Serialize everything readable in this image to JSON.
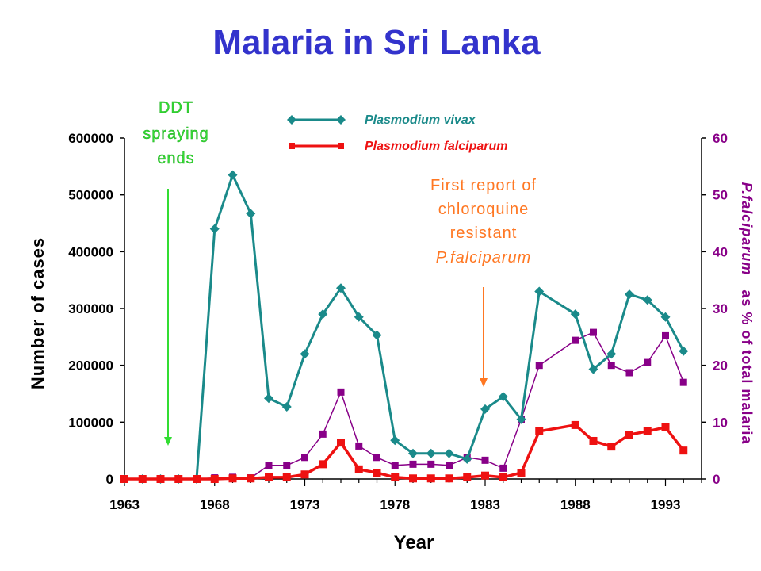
{
  "title": "Malaria in Sri Lanka",
  "colors": {
    "title": "#3333cc",
    "vivax": "#1a8a8a",
    "falciparum": "#ee1111",
    "percent": "#880088",
    "ddt_annotation": "#33dd33",
    "chloroquine_annotation": "#ff7722",
    "axis": "#000000"
  },
  "legend": {
    "vivax": "Plasmodium vivax",
    "falciparum": "Plasmodium falciparum"
  },
  "annotations": {
    "ddt": [
      "DDT",
      "spraying",
      "ends"
    ],
    "chloroquine": [
      "First report of",
      "chloroquine",
      "resistant",
      "P.falciparum"
    ]
  },
  "chart_data": {
    "type": "line",
    "title": "Malaria in Sri Lanka",
    "xlabel": "Year",
    "ylabel": "Number of cases",
    "y2label_italic": "P.falciparum",
    "y2label_rest": "as % of total malaria",
    "xlim": [
      1963,
      1995
    ],
    "ylim": [
      0,
      600000
    ],
    "y2lim": [
      0,
      60
    ],
    "x_ticks": [
      1963,
      1968,
      1973,
      1978,
      1983,
      1988,
      1993
    ],
    "y_ticks": [
      0,
      100000,
      200000,
      300000,
      400000,
      500000,
      600000
    ],
    "y2_ticks": [
      0,
      10,
      20,
      30,
      40,
      50,
      60
    ],
    "grid": false,
    "legend_position": "top-center",
    "annotation_arrows": [
      {
        "label": "DDT spraying ends",
        "x": 1965.4
      },
      {
        "label": "First report of chloroquine resistant P.falciparum",
        "x": 1983
      }
    ],
    "series": [
      {
        "name": "Plasmodium vivax",
        "axis": "left",
        "marker": "diamond",
        "x": [
          1963,
          1964,
          1965,
          1966,
          1967,
          1968,
          1969,
          1970,
          1971,
          1972,
          1973,
          1974,
          1975,
          1976,
          1977,
          1978,
          1979,
          1980,
          1981,
          1982,
          1983,
          1984,
          1985,
          1986,
          1988,
          1989,
          1990,
          1991,
          1992,
          1993,
          1994
        ],
        "values": [
          0,
          0,
          0,
          0,
          0,
          440000,
          535000,
          467000,
          142000,
          127000,
          220000,
          290000,
          336000,
          285000,
          253000,
          68000,
          45000,
          45000,
          45000,
          35000,
          123000,
          145000,
          105000,
          330000,
          290000,
          193000,
          220000,
          325000,
          315000,
          285000,
          225000
        ]
      },
      {
        "name": "Plasmodium falciparum",
        "axis": "left",
        "marker": "square",
        "x": [
          1963,
          1964,
          1965,
          1966,
          1967,
          1968,
          1969,
          1970,
          1971,
          1972,
          1973,
          1974,
          1975,
          1976,
          1977,
          1978,
          1979,
          1980,
          1981,
          1982,
          1983,
          1984,
          1985,
          1986,
          1988,
          1989,
          1990,
          1991,
          1992,
          1993,
          1994
        ],
        "values": [
          0,
          0,
          0,
          0,
          0,
          0,
          1000,
          1000,
          3000,
          3000,
          8000,
          26000,
          64000,
          17000,
          11000,
          3000,
          1000,
          1000,
          1000,
          3000,
          6000,
          3000,
          11000,
          84000,
          95000,
          67000,
          57000,
          78000,
          84000,
          91000,
          50000
        ]
      },
      {
        "name": "P.falciparum as % of total malaria",
        "axis": "right",
        "marker": "square-small",
        "x": [
          1963,
          1964,
          1965,
          1966,
          1967,
          1968,
          1969,
          1970,
          1971,
          1972,
          1973,
          1974,
          1975,
          1976,
          1977,
          1978,
          1979,
          1980,
          1981,
          1982,
          1983,
          1984,
          1985,
          1986,
          1988,
          1989,
          1990,
          1991,
          1992,
          1993,
          1994
        ],
        "values": [
          0,
          0,
          0,
          0,
          0,
          0.2,
          0.3,
          0.2,
          2.4,
          2.4,
          3.8,
          7.9,
          15.3,
          5.8,
          3.8,
          2.4,
          2.6,
          2.6,
          2.4,
          3.8,
          3.3,
          1.9,
          10.5,
          20.0,
          24.4,
          25.8,
          20.0,
          18.7,
          20.5,
          25.2,
          17.0
        ]
      }
    ]
  }
}
